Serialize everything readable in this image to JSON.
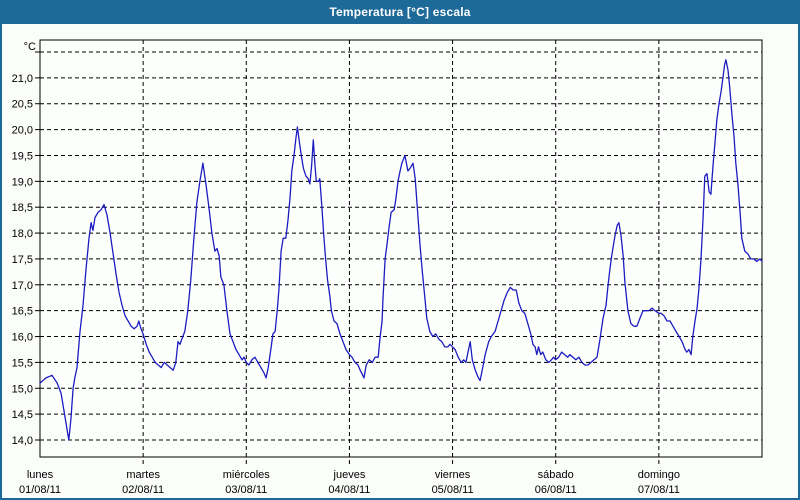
{
  "window": {
    "title": "Temperatura [°C] escala"
  },
  "colors": {
    "titlebar_bg": "#1d6a99",
    "titlebar_text": "#ffffff",
    "frame_border": "#1d6a99",
    "page_bg": "#fbfdfa",
    "plot_bg": "#fdfffd",
    "line": "#1c1cc0",
    "grid": "#000000",
    "axis": "#000000",
    "text": "#000000"
  },
  "chart_data": {
    "type": "line",
    "title": "Temperatura [°C] escala",
    "y_unit": "°C",
    "ylim": [
      14.0,
      21.5
    ],
    "ytick_step": 0.5,
    "y_ticks": [
      14.0,
      14.5,
      15.0,
      15.5,
      16.0,
      16.5,
      17.0,
      17.5,
      18.0,
      18.5,
      19.0,
      19.5,
      20.0,
      20.5,
      21.0
    ],
    "grid_style": "dashed",
    "x_hours_span": 168,
    "days": [
      {
        "weekday": "lunes",
        "date": "01/08/11"
      },
      {
        "weekday": "martes",
        "date": "02/08/11"
      },
      {
        "weekday": "miércoles",
        "date": "03/08/11"
      },
      {
        "weekday": "jueves",
        "date": "04/08/11"
      },
      {
        "weekday": "viernes",
        "date": "05/08/11"
      },
      {
        "weekday": "sábado",
        "date": "06/08/11"
      },
      {
        "weekday": "domingo",
        "date": "07/08/11"
      }
    ],
    "series": [
      {
        "name": "Temperatura",
        "unit": "°C",
        "points": [
          [
            0.0,
            15.1
          ],
          [
            1.4,
            15.2
          ],
          [
            2.8,
            15.25
          ],
          [
            4.0,
            15.1
          ],
          [
            4.9,
            14.9
          ],
          [
            5.6,
            14.55
          ],
          [
            6.3,
            14.2
          ],
          [
            6.7,
            14.0
          ],
          [
            7.2,
            14.4
          ],
          [
            7.7,
            15.0
          ],
          [
            8.1,
            15.2
          ],
          [
            8.6,
            15.4
          ],
          [
            9.3,
            16.1
          ],
          [
            10.0,
            16.6
          ],
          [
            10.7,
            17.3
          ],
          [
            11.4,
            17.9
          ],
          [
            11.9,
            18.2
          ],
          [
            12.3,
            18.05
          ],
          [
            12.8,
            18.3
          ],
          [
            13.5,
            18.4
          ],
          [
            14.2,
            18.45
          ],
          [
            14.9,
            18.55
          ],
          [
            15.6,
            18.35
          ],
          [
            16.3,
            18.0
          ],
          [
            17.0,
            17.6
          ],
          [
            17.7,
            17.2
          ],
          [
            18.4,
            16.85
          ],
          [
            19.1,
            16.6
          ],
          [
            19.8,
            16.4
          ],
          [
            20.5,
            16.3
          ],
          [
            21.2,
            16.2
          ],
          [
            21.9,
            16.15
          ],
          [
            22.6,
            16.2
          ],
          [
            23.0,
            16.3
          ],
          [
            23.5,
            16.15
          ],
          [
            24.0,
            16.05
          ],
          [
            24.7,
            15.85
          ],
          [
            25.4,
            15.7
          ],
          [
            26.1,
            15.6
          ],
          [
            26.8,
            15.5
          ],
          [
            27.5,
            15.45
          ],
          [
            28.2,
            15.4
          ],
          [
            28.9,
            15.5
          ],
          [
            29.6,
            15.45
          ],
          [
            30.3,
            15.4
          ],
          [
            31.0,
            15.35
          ],
          [
            31.6,
            15.5
          ],
          [
            32.1,
            15.9
          ],
          [
            32.6,
            15.85
          ],
          [
            33.0,
            15.95
          ],
          [
            33.7,
            16.1
          ],
          [
            34.4,
            16.5
          ],
          [
            35.1,
            17.1
          ],
          [
            35.8,
            17.9
          ],
          [
            36.5,
            18.6
          ],
          [
            37.2,
            19.0
          ],
          [
            37.9,
            19.35
          ],
          [
            38.6,
            18.95
          ],
          [
            39.3,
            18.5
          ],
          [
            40.0,
            18.0
          ],
          [
            40.7,
            17.65
          ],
          [
            41.2,
            17.7
          ],
          [
            41.7,
            17.55
          ],
          [
            42.1,
            17.15
          ],
          [
            42.8,
            17.0
          ],
          [
            43.5,
            16.5
          ],
          [
            44.2,
            16.05
          ],
          [
            44.9,
            15.9
          ],
          [
            45.6,
            15.75
          ],
          [
            46.3,
            15.65
          ],
          [
            47.0,
            15.55
          ],
          [
            47.5,
            15.6
          ],
          [
            48.0,
            15.5
          ],
          [
            48.6,
            15.45
          ],
          [
            49.3,
            15.55
          ],
          [
            50.0,
            15.6
          ],
          [
            50.7,
            15.5
          ],
          [
            51.4,
            15.4
          ],
          [
            52.1,
            15.3
          ],
          [
            52.6,
            15.2
          ],
          [
            53.1,
            15.4
          ],
          [
            53.8,
            15.8
          ],
          [
            54.2,
            16.05
          ],
          [
            54.7,
            16.1
          ],
          [
            55.2,
            16.5
          ],
          [
            55.6,
            16.9
          ],
          [
            56.1,
            17.65
          ],
          [
            56.6,
            17.9
          ],
          [
            57.2,
            17.9
          ],
          [
            57.7,
            18.25
          ],
          [
            58.2,
            18.7
          ],
          [
            58.6,
            19.2
          ],
          [
            59.1,
            19.5
          ],
          [
            59.5,
            19.8
          ],
          [
            59.9,
            20.05
          ],
          [
            60.3,
            19.8
          ],
          [
            60.8,
            19.5
          ],
          [
            61.3,
            19.25
          ],
          [
            61.9,
            19.1
          ],
          [
            62.4,
            19.05
          ],
          [
            62.8,
            18.95
          ],
          [
            63.2,
            19.3
          ],
          [
            63.6,
            19.8
          ],
          [
            64.0,
            19.3
          ],
          [
            64.3,
            19.0
          ],
          [
            64.8,
            19.0
          ],
          [
            65.1,
            19.05
          ],
          [
            65.6,
            18.5
          ],
          [
            66.0,
            18.0
          ],
          [
            66.4,
            17.55
          ],
          [
            66.9,
            17.1
          ],
          [
            67.4,
            16.8
          ],
          [
            67.8,
            16.5
          ],
          [
            68.4,
            16.3
          ],
          [
            69.1,
            16.25
          ],
          [
            69.8,
            16.05
          ],
          [
            70.5,
            15.9
          ],
          [
            71.2,
            15.75
          ],
          [
            72.0,
            15.65
          ],
          [
            72.6,
            15.6
          ],
          [
            73.3,
            15.5
          ],
          [
            74.0,
            15.45
          ],
          [
            74.5,
            15.35
          ],
          [
            75.4,
            15.2
          ],
          [
            75.9,
            15.45
          ],
          [
            76.6,
            15.55
          ],
          [
            77.3,
            15.5
          ],
          [
            78.0,
            15.6
          ],
          [
            78.7,
            15.6
          ],
          [
            79.1,
            15.95
          ],
          [
            79.6,
            16.3
          ],
          [
            79.8,
            16.7
          ],
          [
            80.3,
            17.5
          ],
          [
            80.7,
            17.75
          ],
          [
            81.2,
            18.1
          ],
          [
            81.7,
            18.4
          ],
          [
            82.4,
            18.45
          ],
          [
            82.8,
            18.65
          ],
          [
            83.3,
            19.0
          ],
          [
            83.8,
            19.2
          ],
          [
            84.2,
            19.35
          ],
          [
            84.9,
            19.5
          ],
          [
            85.6,
            19.2
          ],
          [
            86.1,
            19.25
          ],
          [
            86.8,
            19.35
          ],
          [
            87.3,
            19.05
          ],
          [
            87.7,
            18.6
          ],
          [
            88.4,
            17.8
          ],
          [
            88.9,
            17.3
          ],
          [
            89.6,
            16.7
          ],
          [
            90.0,
            16.35
          ],
          [
            90.7,
            16.1
          ],
          [
            91.4,
            16.0
          ],
          [
            92.1,
            16.05
          ],
          [
            92.8,
            15.95
          ],
          [
            93.5,
            15.9
          ],
          [
            94.2,
            15.8
          ],
          [
            94.9,
            15.8
          ],
          [
            95.4,
            15.85
          ],
          [
            96.0,
            15.8
          ],
          [
            96.6,
            15.75
          ],
          [
            97.3,
            15.6
          ],
          [
            98.0,
            15.5
          ],
          [
            98.6,
            15.55
          ],
          [
            99.1,
            15.5
          ],
          [
            99.6,
            15.7
          ],
          [
            100.1,
            15.9
          ],
          [
            100.6,
            15.55
          ],
          [
            101.3,
            15.35
          ],
          [
            102.0,
            15.2
          ],
          [
            102.4,
            15.15
          ],
          [
            102.9,
            15.35
          ],
          [
            103.6,
            15.65
          ],
          [
            104.4,
            15.9
          ],
          [
            105.0,
            16.0
          ],
          [
            105.9,
            16.1
          ],
          [
            106.6,
            16.3
          ],
          [
            107.3,
            16.5
          ],
          [
            108.0,
            16.7
          ],
          [
            108.7,
            16.85
          ],
          [
            109.4,
            16.95
          ],
          [
            110.1,
            16.9
          ],
          [
            110.8,
            16.9
          ],
          [
            111.4,
            16.65
          ],
          [
            112.1,
            16.5
          ],
          [
            112.8,
            16.45
          ],
          [
            113.5,
            16.25
          ],
          [
            114.2,
            16.05
          ],
          [
            114.7,
            15.85
          ],
          [
            115.2,
            15.8
          ],
          [
            115.6,
            15.65
          ],
          [
            116.0,
            15.8
          ],
          [
            116.5,
            15.65
          ],
          [
            117.0,
            15.7
          ],
          [
            117.7,
            15.55
          ],
          [
            118.4,
            15.5
          ],
          [
            119.0,
            15.55
          ],
          [
            119.5,
            15.6
          ],
          [
            120.0,
            15.55
          ],
          [
            120.7,
            15.6
          ],
          [
            121.4,
            15.7
          ],
          [
            122.1,
            15.65
          ],
          [
            122.8,
            15.6
          ],
          [
            123.3,
            15.65
          ],
          [
            124.0,
            15.6
          ],
          [
            124.7,
            15.55
          ],
          [
            125.4,
            15.6
          ],
          [
            126.1,
            15.5
          ],
          [
            126.8,
            15.45
          ],
          [
            127.5,
            15.45
          ],
          [
            128.2,
            15.5
          ],
          [
            128.9,
            15.55
          ],
          [
            129.6,
            15.6
          ],
          [
            130.3,
            15.95
          ],
          [
            131.0,
            16.35
          ],
          [
            131.7,
            16.6
          ],
          [
            132.2,
            17.0
          ],
          [
            132.6,
            17.3
          ],
          [
            133.1,
            17.6
          ],
          [
            133.8,
            17.95
          ],
          [
            134.3,
            18.15
          ],
          [
            134.7,
            18.2
          ],
          [
            135.2,
            17.95
          ],
          [
            135.7,
            17.55
          ],
          [
            136.1,
            17.05
          ],
          [
            136.8,
            16.5
          ],
          [
            137.5,
            16.25
          ],
          [
            138.2,
            16.2
          ],
          [
            138.9,
            16.2
          ],
          [
            139.6,
            16.35
          ],
          [
            140.3,
            16.5
          ],
          [
            141.0,
            16.5
          ],
          [
            141.7,
            16.5
          ],
          [
            142.4,
            16.55
          ],
          [
            143.1,
            16.5
          ],
          [
            144.0,
            16.45
          ],
          [
            144.5,
            16.45
          ],
          [
            145.2,
            16.4
          ],
          [
            145.9,
            16.3
          ],
          [
            146.6,
            16.3
          ],
          [
            147.3,
            16.2
          ],
          [
            148.0,
            16.1
          ],
          [
            148.7,
            16.0
          ],
          [
            149.4,
            15.9
          ],
          [
            150.1,
            15.75
          ],
          [
            150.5,
            15.7
          ],
          [
            151.0,
            15.75
          ],
          [
            151.5,
            15.65
          ],
          [
            151.9,
            16.0
          ],
          [
            152.4,
            16.3
          ],
          [
            152.9,
            16.55
          ],
          [
            153.3,
            16.9
          ],
          [
            153.8,
            17.5
          ],
          [
            154.3,
            18.3
          ],
          [
            154.7,
            19.1
          ],
          [
            155.2,
            19.15
          ],
          [
            155.7,
            18.8
          ],
          [
            156.1,
            18.75
          ],
          [
            156.6,
            19.3
          ],
          [
            157.1,
            19.8
          ],
          [
            157.5,
            20.2
          ],
          [
            158.0,
            20.5
          ],
          [
            158.5,
            20.75
          ],
          [
            158.9,
            21.0
          ],
          [
            159.3,
            21.25
          ],
          [
            159.6,
            21.35
          ],
          [
            160.1,
            21.15
          ],
          [
            160.5,
            20.8
          ],
          [
            161.0,
            20.3
          ],
          [
            161.5,
            19.85
          ],
          [
            161.9,
            19.35
          ],
          [
            162.4,
            18.95
          ],
          [
            162.9,
            18.4
          ],
          [
            163.3,
            17.9
          ],
          [
            164.0,
            17.65
          ],
          [
            164.7,
            17.6
          ],
          [
            165.4,
            17.5
          ],
          [
            166.1,
            17.5
          ],
          [
            166.8,
            17.45
          ],
          [
            167.5,
            17.5
          ],
          [
            168.0,
            17.45
          ]
        ]
      }
    ]
  }
}
